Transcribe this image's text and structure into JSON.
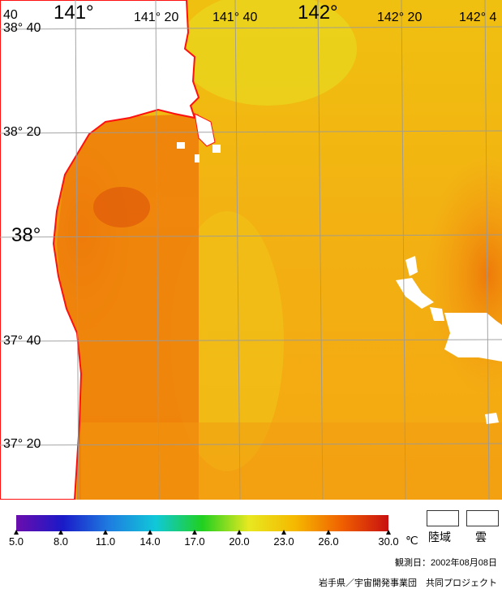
{
  "map": {
    "lon_labels_big": [
      "141°",
      "142°"
    ],
    "lon_labels_small": [
      "141° 20",
      "141° 40",
      "142° 20",
      "142° 4"
    ],
    "lat_labels": [
      "38° 40",
      "38° 20",
      "38°",
      "37° 40",
      "37° 20"
    ],
    "corner_label": "40"
  },
  "colorbar": {
    "ticks": [
      "5.0",
      "8.0",
      "11.0",
      "14.0",
      "17.0",
      "20.0",
      "23.0",
      "26.0",
      "30.0"
    ],
    "unit": "℃",
    "colors": [
      "#6a0dad",
      "#1a1ac8",
      "#1e7de0",
      "#10c8d8",
      "#20d020",
      "#e8e820",
      "#f5b800",
      "#f06000",
      "#c81010"
    ]
  },
  "legend": {
    "land_label": "陸域",
    "cloud_label": "雲"
  },
  "footer": {
    "observation_date": "観測日：2002年08月08日",
    "credit": "岩手県／宇宙開発事業団　共同プロジェクト"
  }
}
